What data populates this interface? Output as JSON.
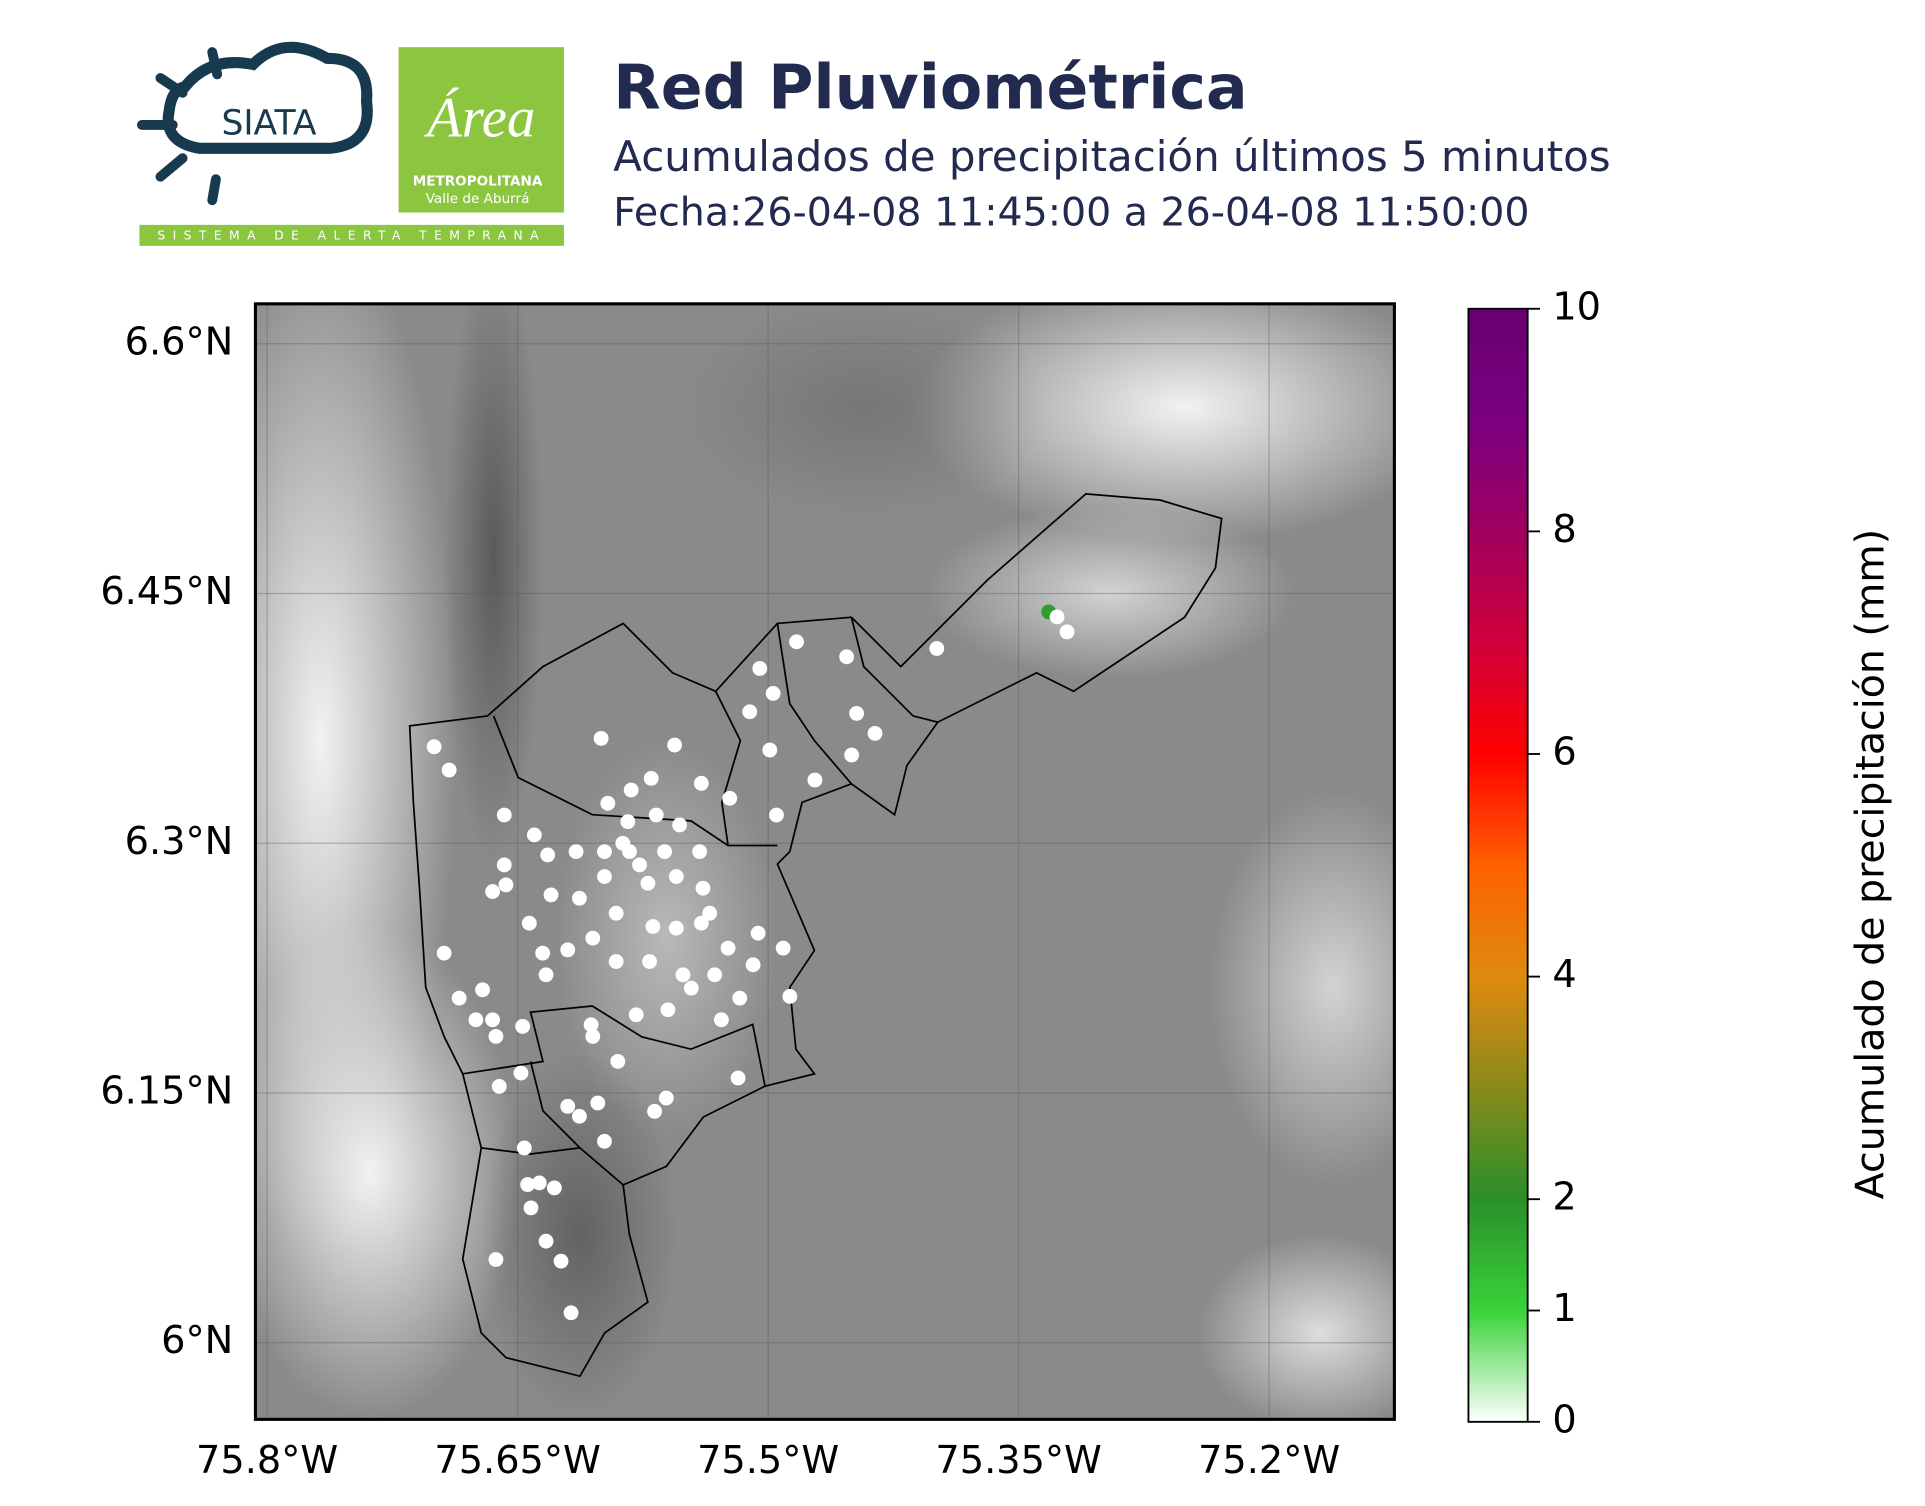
{
  "header": {
    "logo_siata": "SIATA",
    "logo_area": "Área",
    "logo_metropolitana": "METROPOLITANA",
    "logo_valle": "Valle de Aburrá",
    "logo_tagline": "SISTEMA DE ALERTA TEMPRANA"
  },
  "chart_data": {
    "type": "scatter",
    "title": "Red Pluviométrica",
    "subtitle": "Acumulados de precipitación últimos 5 minutos",
    "date_range": "Fecha:26-04-08 11:45:00 a 26-04-08 11:50:00",
    "xlim": [
      -75.807,
      -75.125
    ],
    "ylim": [
      5.954,
      6.624
    ],
    "xticks": [
      {
        "value": -75.8,
        "label": "75.8°W"
      },
      {
        "value": -75.65,
        "label": "75.65°W"
      },
      {
        "value": -75.5,
        "label": "75.5°W"
      },
      {
        "value": -75.35,
        "label": "75.35°W"
      },
      {
        "value": -75.2,
        "label": "75.2°W"
      }
    ],
    "yticks": [
      {
        "value": 6.6,
        "label": "6.6°N"
      },
      {
        "value": 6.45,
        "label": "6.45°N"
      },
      {
        "value": 6.3,
        "label": "6.3°N"
      },
      {
        "value": 6.15,
        "label": "6.15°N"
      },
      {
        "value": 6.0,
        "label": "6°N"
      }
    ],
    "grid": true,
    "x": [
      -75.7,
      -75.691,
      -75.658,
      -75.64,
      -75.6,
      -75.556,
      -75.505,
      -75.483,
      -75.453,
      -75.399,
      -75.332,
      -75.327,
      -75.321,
      -75.497,
      -75.511,
      -75.447,
      -75.436,
      -75.45,
      -75.499,
      -75.472,
      -75.495,
      -75.523,
      -75.54,
      -75.57,
      -75.582,
      -75.596,
      -75.615,
      -75.632,
      -75.658,
      -75.665,
      -75.657,
      -75.694,
      -75.685,
      -75.671,
      -75.675,
      -75.665,
      -75.663,
      -75.647,
      -75.661,
      -75.648,
      -75.646,
      -75.644,
      -75.637,
      -75.628,
      -75.642,
      -75.633,
      -75.624,
      -75.663,
      -75.618,
      -75.62,
      -75.613,
      -75.598,
      -75.602,
      -75.568,
      -75.561,
      -75.59,
      -75.605,
      -75.606,
      -75.579,
      -75.56,
      -75.546,
      -75.528,
      -75.518,
      -75.517,
      -75.487,
      -75.491,
      -75.506,
      -75.524,
      -75.54,
      -75.555,
      -75.569,
      -75.591,
      -75.605,
      -75.62,
      -75.635,
      -75.63,
      -75.643,
      -75.633,
      -75.583,
      -75.577,
      -75.562,
      -75.541,
      -75.555,
      -75.572,
      -75.598,
      -75.613,
      -75.539,
      -75.535,
      -75.584,
      -75.567,
      -75.553,
      -75.587,
      -75.598,
      -75.532,
      -75.551,
      -75.571,
      -75.591,
      -75.509
    ],
    "y": [
      6.358,
      6.344,
      6.317,
      6.305,
      6.363,
      6.359,
      6.405,
      6.421,
      6.412,
      6.417,
      6.439,
      6.436,
      6.427,
      6.39,
      6.379,
      6.378,
      6.366,
      6.353,
      6.356,
      6.338,
      6.317,
      6.327,
      6.336,
      6.339,
      6.332,
      6.324,
      6.295,
      6.293,
      6.287,
      6.271,
      6.275,
      6.234,
      6.207,
      6.212,
      6.194,
      6.194,
      6.184,
      6.19,
      6.154,
      6.162,
      6.117,
      6.095,
      6.096,
      6.093,
      6.081,
      6.061,
      6.049,
      6.05,
      6.018,
      6.142,
      6.136,
      6.121,
      6.144,
      6.139,
      6.147,
      6.169,
      6.184,
      6.191,
      6.197,
      6.2,
      6.213,
      6.194,
      6.159,
      6.207,
      6.208,
      6.237,
      6.246,
      6.237,
      6.252,
      6.249,
      6.25,
      6.258,
      6.243,
      6.236,
      6.234,
      6.269,
      6.252,
      6.221,
      6.295,
      6.287,
      6.295,
      6.295,
      6.28,
      6.276,
      6.28,
      6.267,
      6.273,
      6.258,
      6.313,
      6.317,
      6.311,
      6.3,
      6.295,
      6.221,
      6.221,
      6.229,
      6.229,
      6.227
    ],
    "values": [
      0,
      0,
      0,
      0,
      0,
      0,
      0,
      0,
      0,
      0,
      1.8,
      0,
      0,
      0,
      0,
      0,
      0,
      0,
      0,
      0,
      0,
      0,
      0,
      0,
      0,
      0,
      0,
      0,
      0,
      0,
      0,
      0,
      0,
      0,
      0,
      0,
      0,
      0,
      0,
      0,
      0,
      0,
      0,
      0,
      0,
      0,
      0,
      0,
      0,
      0,
      0,
      0,
      0,
      0,
      0,
      0,
      0,
      0,
      0,
      0,
      0,
      0,
      0,
      0,
      0,
      0,
      0,
      0,
      0,
      0,
      0,
      0,
      0,
      0,
      0,
      0,
      0,
      0,
      0,
      0,
      0,
      0,
      0,
      0,
      0,
      0,
      0,
      0,
      0,
      0,
      0,
      0,
      0,
      0,
      0,
      0,
      0,
      0
    ],
    "colorbar": {
      "label": "Acumulado de precipitación (mm)",
      "lim": [
        0,
        10
      ],
      "ticks": [
        0,
        1,
        2,
        4,
        6,
        8,
        10
      ],
      "colors": [
        "#ffffff",
        "#39d339",
        "#2a8f2a",
        "#8a8a1a",
        "#e08a10",
        "#ff6000",
        "#ff0000",
        "#d0003a",
        "#a00060",
        "#7a0080",
        "#680070"
      ]
    }
  }
}
